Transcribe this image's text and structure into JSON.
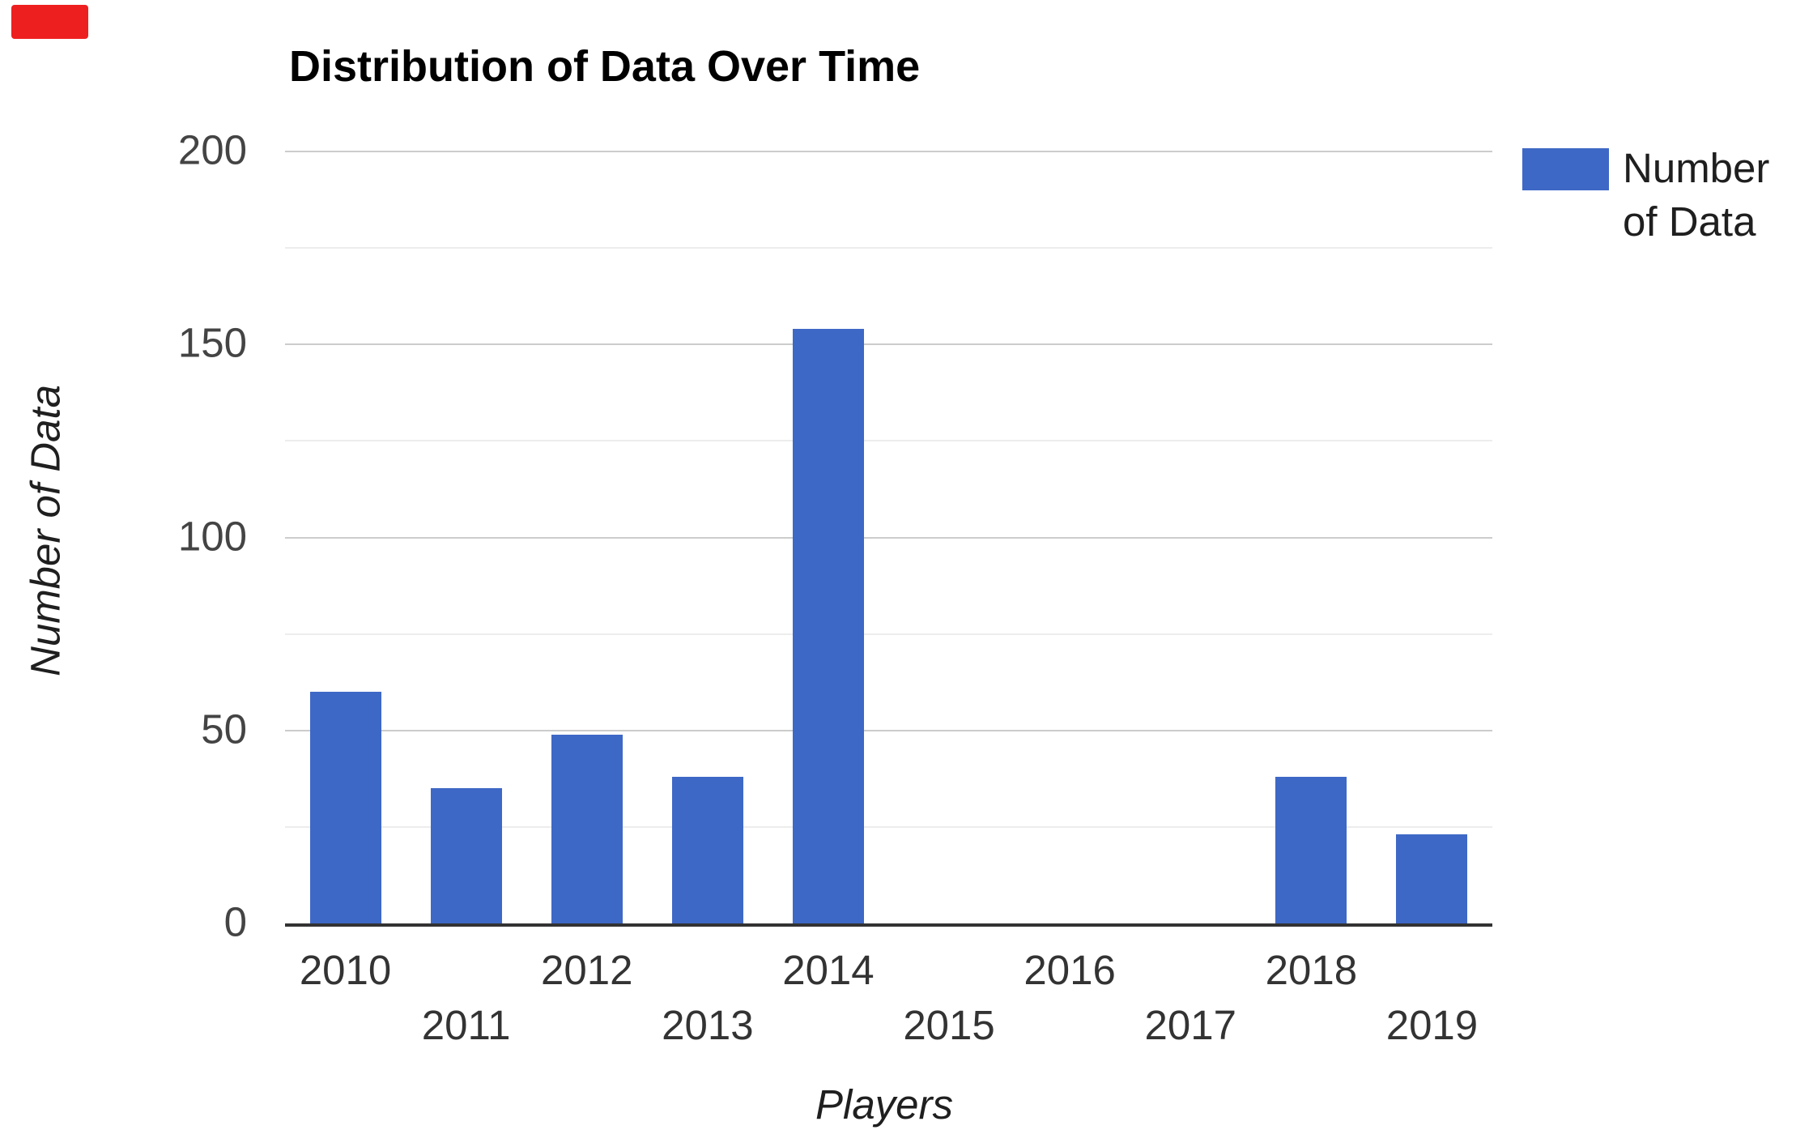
{
  "recording_indicator": {
    "color": "#ee1f1f"
  },
  "chart": {
    "title": "Distribution of Data Over Time",
    "x_axis_title": "Players",
    "y_axis_title": "Number of Data",
    "legend": {
      "label": "Number of Data",
      "swatch_color": "#3e68c6"
    }
  },
  "chart_data": {
    "type": "bar",
    "title": "Distribution of Data Over Time",
    "xlabel": "Players",
    "ylabel": "Number of Data",
    "categories": [
      "2010",
      "2011",
      "2012",
      "2013",
      "2014",
      "2015",
      "2016",
      "2017",
      "2018",
      "2019"
    ],
    "series": [
      {
        "name": "Number of Data",
        "values": [
          60,
          35,
          49,
          38,
          154,
          0,
          0,
          0,
          38,
          23
        ]
      }
    ],
    "ylim": [
      0,
      200
    ],
    "y_ticks": [
      0,
      50,
      100,
      150,
      200
    ],
    "y_minor_step": 25,
    "grid": "horizontal-major-and-minor",
    "legend_position": "right",
    "x_label_layout": "staggered-two-rows",
    "colors": {
      "bar": "#3e68c6",
      "major_grid": "#cccccc",
      "minor_grid": "#ededed",
      "axis_line": "#333333",
      "y_tick_label": "#444444",
      "x_tick_label": "#333333",
      "title": "#000000"
    }
  }
}
